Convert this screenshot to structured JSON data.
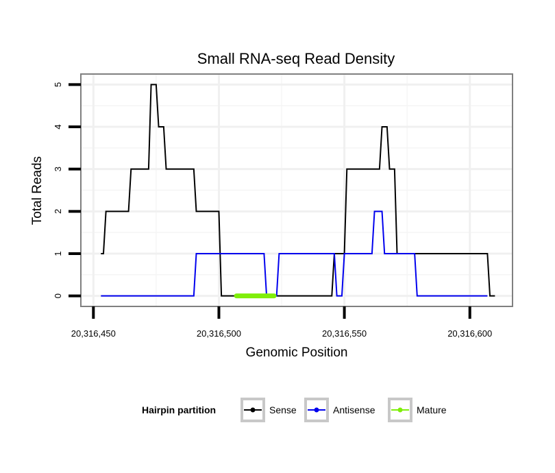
{
  "chart_data": {
    "type": "line",
    "title": "Small RNA-seq Read Density",
    "xlabel": "Genomic Position",
    "ylabel": "Total Reads",
    "xlim": [
      20316445,
      20316617
    ],
    "ylim": [
      -0.25,
      5.25
    ],
    "x_ticks": [
      20316450,
      20316500,
      20316550,
      20316600
    ],
    "x_tick_labels": [
      "20,316,450",
      "20,316,500",
      "20,316,550",
      "20,316,600"
    ],
    "y_ticks": [
      0,
      1,
      2,
      3,
      4,
      5
    ],
    "y_tick_labels": [
      "0",
      "1",
      "2",
      "3",
      "4",
      "5"
    ],
    "grid": true,
    "legend": {
      "title": "Hairpin partition",
      "position": "bottom",
      "entries": [
        "Sense",
        "Antisense",
        "Mature"
      ]
    },
    "series": [
      {
        "name": "Sense",
        "color": "#000000",
        "x": [
          20316453,
          20316454,
          20316455,
          20316464,
          20316465,
          20316472,
          20316473,
          20316475,
          20316476,
          20316478,
          20316479,
          20316490,
          20316491,
          20316500,
          20316501,
          20316502,
          20316545,
          20316546,
          20316550,
          20316551,
          20316552,
          20316564,
          20316565,
          20316567,
          20316568,
          20316570,
          20316571,
          20316573,
          20316574,
          20316607,
          20316608,
          20316610
        ],
        "y": [
          1,
          1,
          2,
          2,
          3,
          3,
          5,
          5,
          4,
          4,
          3,
          3,
          2,
          2,
          0,
          0,
          0,
          1,
          1,
          3,
          3,
          3,
          4,
          4,
          3,
          3,
          1,
          1,
          1,
          1,
          0,
          0
        ]
      },
      {
        "name": "Antisense",
        "color": "#0000ee",
        "x": [
          20316453,
          20316490,
          20316491,
          20316518,
          20316519,
          20316523,
          20316524,
          20316546,
          20316547,
          20316549,
          20316550,
          20316561,
          20316562,
          20316565,
          20316566,
          20316578,
          20316579,
          20316607
        ],
        "y": [
          0,
          0,
          1,
          1,
          0,
          0,
          1,
          1,
          0,
          0,
          1,
          1,
          2,
          2,
          1,
          1,
          0,
          0
        ]
      },
      {
        "name": "Mature",
        "color": "#7fee0a",
        "x": [
          20316507,
          20316522
        ],
        "y": [
          0,
          0
        ]
      }
    ]
  }
}
